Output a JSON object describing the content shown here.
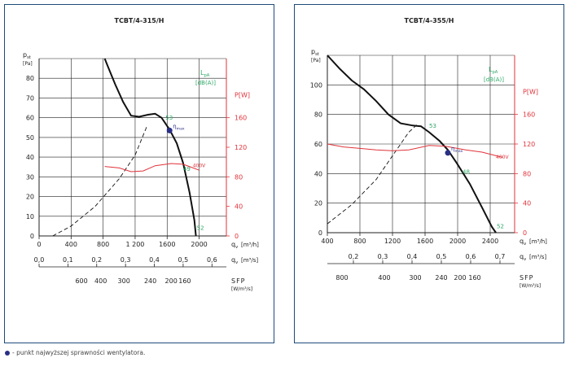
{
  "footnote": "- punkt najwyższej sprawności wentylatora.",
  "colors": {
    "frame": "#1e4b7a",
    "curve": "#111111",
    "power": "#e0333a",
    "noise": "#2fa866",
    "point": "#2a2f85"
  },
  "chart_data": [
    {
      "type": "line",
      "title": "TCBT/4-315/H",
      "y_label": "p",
      "y_label_sub": "st",
      "y_unit": "[Pa]",
      "y_ticks": [
        0,
        10,
        20,
        30,
        40,
        50,
        60,
        70,
        80
      ],
      "ylim": [
        0,
        90
      ],
      "power_label": "P[W]",
      "power_ticks": [
        0,
        40,
        80,
        120,
        160
      ],
      "power_lim": [
        0,
        240
      ],
      "lpa_label": "L",
      "lpa_sub": "pA",
      "lpa_unit": "[dB(A)]",
      "x_label": "q",
      "x_label_sub": "v",
      "x_unit": "[m³/h]",
      "x_ticks": [
        0,
        400,
        800,
        1200,
        1600,
        2000
      ],
      "x_tick_labels": [
        "0",
        "400",
        "800",
        "1 200",
        "1600",
        "2000"
      ],
      "xlim": [
        0,
        2340
      ],
      "x2_label": "q",
      "x2_label_sub": "v",
      "x2_unit": "[m³/s]",
      "x2_ticks": [
        0.0,
        0.1,
        0.2,
        0.3,
        0.4,
        0.5,
        0.6
      ],
      "x2_tick_labels": [
        "0,0",
        "0,1",
        "0,2",
        "0,3",
        "0,4",
        "0,5",
        "0,6"
      ],
      "sfp_label": "SFP",
      "sfp_unit": "[W/m³/s]",
      "sfp_ticks": [
        {
          "x": 530,
          "label": "600"
        },
        {
          "x": 770,
          "label": "400"
        },
        {
          "x": 1060,
          "label": "300"
        },
        {
          "x": 1390,
          "label": "240"
        },
        {
          "x": 1650,
          "label": "200"
        },
        {
          "x": 1820,
          "label": "160"
        }
      ],
      "series": [
        {
          "role": "pressure",
          "points": [
            [
              820,
              90
            ],
            [
              860,
              86
            ],
            [
              950,
              77
            ],
            [
              1050,
              68
            ],
            [
              1150,
              61
            ],
            [
              1250,
              60.5
            ],
            [
              1360,
              61.5
            ],
            [
              1450,
              62
            ],
            [
              1530,
              60
            ],
            [
              1630,
              54
            ],
            [
              1720,
              47
            ],
            [
              1800,
              37
            ],
            [
              1880,
              22
            ],
            [
              1940,
              8
            ],
            [
              1960,
              0
            ]
          ]
        },
        {
          "role": "system",
          "points": [
            [
              170,
              0
            ],
            [
              400,
              5
            ],
            [
              700,
              15
            ],
            [
              1000,
              29
            ],
            [
              1200,
              41
            ],
            [
              1350,
              56
            ]
          ]
        },
        {
          "role": "power",
          "points": [
            [
              820,
              94
            ],
            [
              1000,
              92
            ],
            [
              1150,
              87
            ],
            [
              1300,
              88
            ],
            [
              1450,
              95
            ],
            [
              1650,
              98
            ],
            [
              1800,
              97
            ],
            [
              1900,
              93
            ],
            [
              2000,
              89
            ]
          ]
        }
      ],
      "noise_labels": [
        {
          "x": 1580,
          "y": 59,
          "label": "53"
        },
        {
          "x": 1800,
          "y": 33,
          "label": "49"
        },
        {
          "x": 1970,
          "y": 3,
          "label": "52"
        }
      ],
      "power_tag": {
        "x": 1920,
        "y": 93,
        "label": "400V"
      },
      "best_point": {
        "x": 1630,
        "y": 53.5,
        "label": "η",
        "label_sub": "max"
      }
    },
    {
      "type": "line",
      "title": "TCBT/4-355/H",
      "y_label": "p",
      "y_label_sub": "st",
      "y_unit": "[Pa]",
      "y_ticks": [
        0,
        20,
        40,
        60,
        80,
        100
      ],
      "ylim": [
        0,
        120
      ],
      "power_label": "P[W]",
      "power_ticks": [
        0,
        40,
        80,
        120,
        160
      ],
      "power_lim": [
        0,
        240
      ],
      "lpa_label": "L",
      "lpa_sub": "pA",
      "lpa_unit": "[dB(A)]",
      "x_label": "q",
      "x_label_sub": "v",
      "x_unit": "[m³/h]",
      "x_ticks": [
        400,
        800,
        1200,
        1600,
        2000,
        2400
      ],
      "x_tick_labels": [
        "400",
        "800",
        "1200",
        "1600",
        "2000",
        "2400"
      ],
      "xlim": [
        400,
        2700
      ],
      "x2_label": "q",
      "x2_label_sub": "v",
      "x2_unit": "[m³/s]",
      "x2_ticks": [
        0.2,
        0.3,
        0.4,
        0.5,
        0.6,
        0.7
      ],
      "x2_tick_labels": [
        "0,2",
        "0,3",
        "0,4",
        "0,5",
        "0,6",
        "0,7"
      ],
      "sfp_label": "SFP",
      "sfp_unit": "[W/m³/s]",
      "sfp_ticks": [
        {
          "x": 580,
          "label": "800"
        },
        {
          "x": 1100,
          "label": "400"
        },
        {
          "x": 1480,
          "label": "300"
        },
        {
          "x": 1800,
          "label": "240"
        },
        {
          "x": 2030,
          "label": "200"
        },
        {
          "x": 2210,
          "label": "160"
        }
      ],
      "series": [
        {
          "role": "pressure",
          "points": [
            [
              400,
              120
            ],
            [
              550,
              111
            ],
            [
              700,
              103
            ],
            [
              850,
              97
            ],
            [
              1000,
              89
            ],
            [
              1150,
              80
            ],
            [
              1300,
              74
            ],
            [
              1450,
              72.5
            ],
            [
              1550,
              72
            ],
            [
              1650,
              68
            ],
            [
              1780,
              62
            ],
            [
              1880,
              56
            ],
            [
              1990,
              47
            ],
            [
              2150,
              33
            ],
            [
              2300,
              17
            ],
            [
              2420,
              4
            ],
            [
              2470,
              0
            ]
          ]
        },
        {
          "role": "system",
          "points": [
            [
              400,
              6
            ],
            [
              700,
              19
            ],
            [
              1000,
              36
            ],
            [
              1200,
              52
            ],
            [
              1400,
              68
            ],
            [
              1500,
              73
            ]
          ]
        },
        {
          "role": "power",
          "points": [
            [
              400,
              120
            ],
            [
              600,
              116
            ],
            [
              800,
              114
            ],
            [
              1000,
              112
            ],
            [
              1200,
              111
            ],
            [
              1400,
              112
            ],
            [
              1650,
              118
            ],
            [
              1850,
              117
            ],
            [
              2100,
              112
            ],
            [
              2300,
              109
            ],
            [
              2550,
              102
            ]
          ]
        }
      ],
      "noise_labels": [
        {
          "x": 1650,
          "y": 71,
          "label": "53"
        },
        {
          "x": 2060,
          "y": 40,
          "label": "48"
        },
        {
          "x": 2480,
          "y": 3,
          "label": "52"
        }
      ],
      "power_tag": {
        "x": 2470,
        "y": 100,
        "label": "400V"
      },
      "best_point": {
        "x": 1880,
        "y": 54,
        "label": "η",
        "label_sub": "max"
      }
    }
  ]
}
